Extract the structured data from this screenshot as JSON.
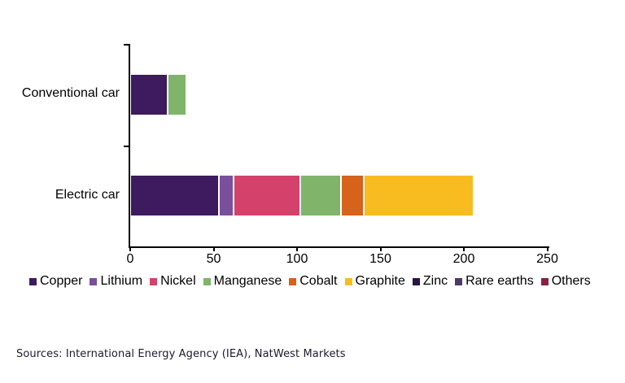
{
  "chart_data": {
    "type": "bar",
    "orientation": "horizontal",
    "stacked": true,
    "title": "",
    "xlabel": "",
    "ylabel": "",
    "categories": [
      "Conventional car",
      "Electric car"
    ],
    "series": [
      {
        "name": "Copper",
        "color": "#3E1A5E",
        "values": [
          22.3,
          53.2
        ]
      },
      {
        "name": "Lithium",
        "color": "#7A4F9C",
        "values": [
          0,
          8.9
        ]
      },
      {
        "name": "Nickel",
        "color": "#D4426B",
        "values": [
          0,
          39.9
        ]
      },
      {
        "name": "Manganese",
        "color": "#80B46A",
        "values": [
          11.2,
          24.5
        ]
      },
      {
        "name": "Cobalt",
        "color": "#D6621C",
        "values": [
          0,
          13.3
        ]
      },
      {
        "name": "Graphite",
        "color": "#F9BC20",
        "values": [
          0,
          66.3
        ]
      },
      {
        "name": "Zinc",
        "color": "#281542",
        "values": [
          0.1,
          0.1
        ]
      },
      {
        "name": "Rare earths",
        "color": "#4E3A68",
        "values": [
          0,
          0.5
        ]
      },
      {
        "name": "Others",
        "color": "#8A2040",
        "values": [
          0.3,
          0.3
        ]
      }
    ],
    "xlim": [
      0,
      250
    ],
    "x_ticks": [
      "0",
      "50",
      "100",
      "150",
      "200",
      "250"
    ],
    "grid": false,
    "legend_position": "bottom",
    "axis_color": "#000000",
    "text_color": "#000000"
  },
  "footer": {
    "sources": "Sources: International Energy Agency (IEA), NatWest Markets"
  }
}
